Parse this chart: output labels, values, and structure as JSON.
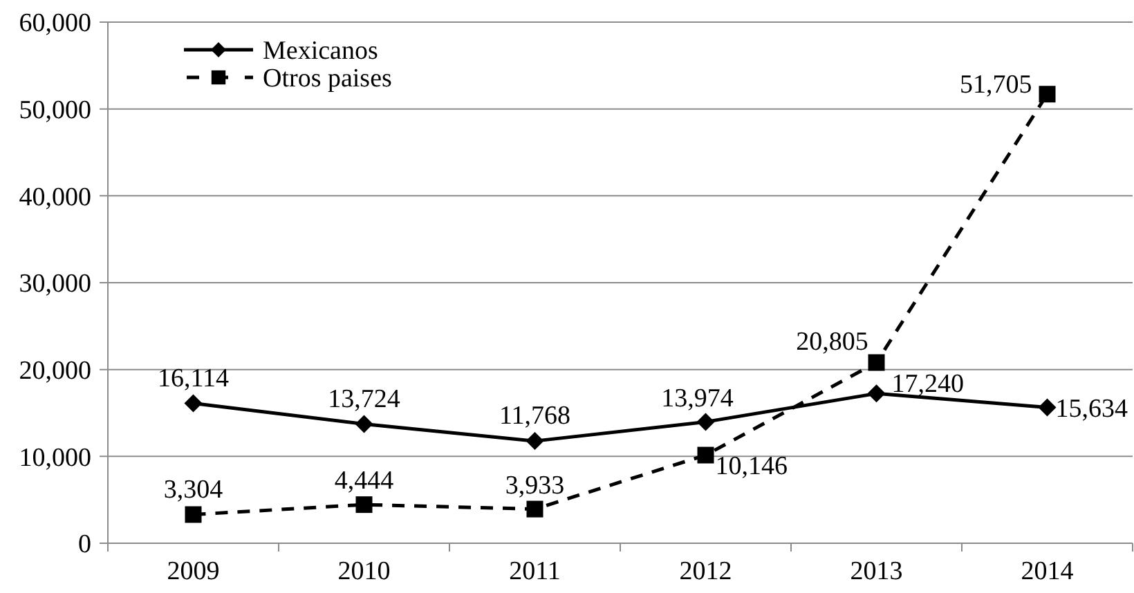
{
  "chart_data": {
    "type": "line",
    "categories": [
      "2009",
      "2010",
      "2011",
      "2012",
      "2013",
      "2014"
    ],
    "series": [
      {
        "name": "Mexicanos",
        "color": "#000000",
        "marker": "diamond",
        "line_style": "solid",
        "values": [
          16114,
          13724,
          11768,
          13974,
          17240,
          15634
        ],
        "value_labels": [
          "16,114",
          "13,724",
          "11,768",
          "13,974",
          "17,240",
          "15,634"
        ]
      },
      {
        "name": "Otros paises",
        "color": "#000000",
        "marker": "square",
        "line_style": "dashed",
        "values": [
          3304,
          4444,
          3933,
          10146,
          20805,
          51705
        ],
        "value_labels": [
          "3,304",
          "4,444",
          "3,933",
          "10,146",
          "20,805",
          "51,705"
        ]
      }
    ],
    "ylim": [
      0,
      60000
    ],
    "yticks": [
      {
        "value": 0,
        "label": "0"
      },
      {
        "value": 10000,
        "label": "10,000"
      },
      {
        "value": 20000,
        "label": "20,000"
      },
      {
        "value": 30000,
        "label": "30,000"
      },
      {
        "value": 40000,
        "label": "40,000"
      },
      {
        "value": 50000,
        "label": "50,000"
      },
      {
        "value": 60000,
        "label": "60,000"
      }
    ],
    "grid": "y",
    "legend": "top left"
  }
}
